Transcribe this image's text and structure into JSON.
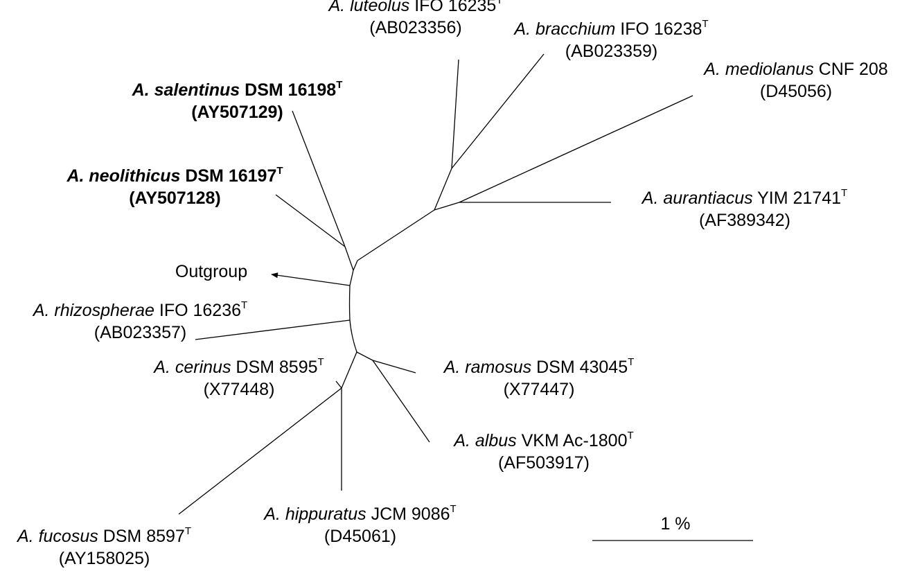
{
  "taxa": [
    {
      "id": "luteolus",
      "genus": "A.",
      "species": "luteolus",
      "strain": "IFO 16235",
      "type_strain": true,
      "accession": "(AB023356)",
      "bold": false
    },
    {
      "id": "bracchium",
      "genus": "A.",
      "species": "bracchium",
      "strain": "IFO 16238",
      "type_strain": true,
      "accession": "(AB023359)",
      "bold": false
    },
    {
      "id": "mediolanus",
      "genus": "A.",
      "species": "mediolanus",
      "strain": "CNF 208",
      "type_strain": false,
      "accession": "(D45056)",
      "bold": false
    },
    {
      "id": "salentinus",
      "genus": "A.",
      "species": "salentinus",
      "strain": "DSM 16198",
      "type_strain": true,
      "accession": "(AY507129)",
      "bold": true
    },
    {
      "id": "neolithicus",
      "genus": "A.",
      "species": "neolithicus",
      "strain": "DSM 16197",
      "type_strain": true,
      "accession": "(AY507128)",
      "bold": true
    },
    {
      "id": "aurantiacus",
      "genus": "A.",
      "species": "aurantiacus",
      "strain": "YIM 21741",
      "type_strain": true,
      "accession": "(AF389342)",
      "bold": false
    },
    {
      "id": "rhizospherae",
      "genus": "A.",
      "species": "rhizospherae",
      "strain": "IFO 16236",
      "type_strain": true,
      "accession": "(AB023357)",
      "bold": false
    },
    {
      "id": "cerinus",
      "genus": "A.",
      "species": "cerinus",
      "strain": "DSM 8595",
      "type_strain": true,
      "accession": "(X77448)",
      "bold": false
    },
    {
      "id": "ramosus",
      "genus": "A.",
      "species": "ramosus",
      "strain": "DSM 43045",
      "type_strain": true,
      "accession": "(X77447)",
      "bold": false
    },
    {
      "id": "albus",
      "genus": "A.",
      "species": "albus",
      "strain": "VKM Ac-1800",
      "type_strain": true,
      "accession": "(AF503917)",
      "bold": false
    },
    {
      "id": "hippuratus",
      "genus": "A.",
      "species": "hippuratus",
      "strain": "JCM 9086",
      "type_strain": true,
      "accession": "(D45061)",
      "bold": false
    },
    {
      "id": "fucosus",
      "genus": "A.",
      "species": "fucosus",
      "strain": "DSM 8597",
      "type_strain": true,
      "accession": "(AY158025)",
      "bold": false
    }
  ],
  "type_strain_marker": "T",
  "outgroup_label": "Outgroup",
  "scale_bar_label": "1 %",
  "colors": {
    "line": "#000000",
    "text": "#000000",
    "background": "#ffffff"
  }
}
